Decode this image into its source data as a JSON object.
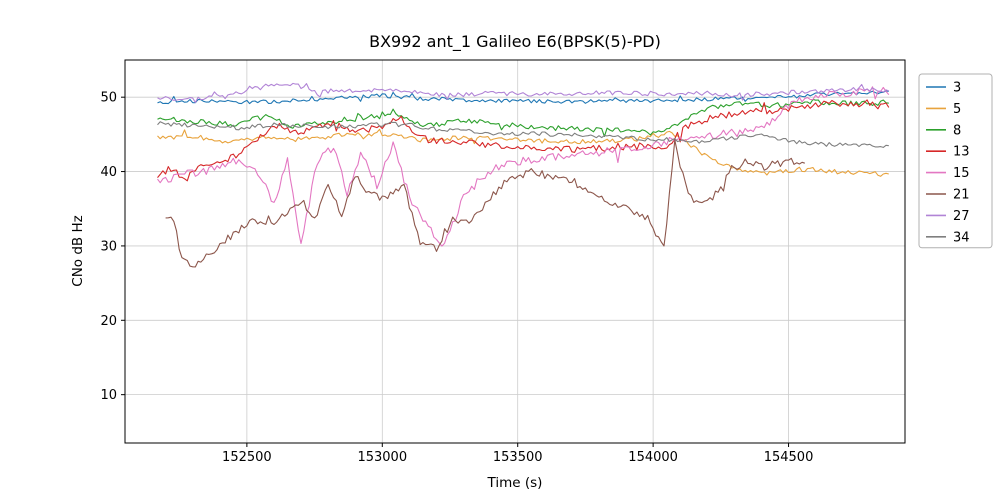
{
  "chart_data": {
    "type": "line",
    "title": "BX992 ant_1 Galileo E6(BPSK(5)-PD)",
    "xlabel": "Time (s)",
    "ylabel": "CNo dB Hz",
    "xlim": [
      152050,
      154930
    ],
    "ylim": [
      3.5,
      55
    ],
    "xticks": [
      152500,
      153000,
      153500,
      154000,
      154500
    ],
    "yticks": [
      10,
      20,
      30,
      40,
      50
    ],
    "grid": true,
    "grid_color": "#cccccc",
    "legend_position": "outside-right",
    "series": [
      {
        "name": "3",
        "color": "#1f77b4",
        "noise": 0.25,
        "x": [
          152170,
          152300,
          152450,
          152600,
          152750,
          152900,
          153000,
          153150,
          153300,
          153500,
          153700,
          153900,
          154100,
          154300,
          154500,
          154650,
          154870
        ],
        "y": [
          49.2,
          49.5,
          49.3,
          49.4,
          49.7,
          50.0,
          50.2,
          49.8,
          49.6,
          49.5,
          49.4,
          49.5,
          49.6,
          49.9,
          50.2,
          50.4,
          50.7
        ]
      },
      {
        "name": "5",
        "color": "#e8a33d",
        "noise": 0.3,
        "x": [
          152170,
          152300,
          152420,
          152550,
          152700,
          152850,
          153000,
          153150,
          153300,
          153450,
          153600,
          153800,
          153950,
          154050,
          154120,
          154200,
          154300,
          154420,
          154550,
          154700,
          154870
        ],
        "y": [
          44.5,
          44.8,
          43.9,
          44.6,
          44.3,
          44.9,
          45.1,
          44.2,
          44.6,
          44.4,
          44.1,
          44.0,
          44.4,
          45.3,
          44.0,
          42.0,
          40.3,
          39.8,
          40.3,
          39.9,
          39.6
        ]
      },
      {
        "name": "8",
        "color": "#2ca02c",
        "noise": 0.35,
        "x": [
          152170,
          152300,
          152450,
          152570,
          152650,
          152800,
          152950,
          153050,
          153150,
          153300,
          153450,
          153600,
          153750,
          153900,
          154000,
          154080,
          154180,
          154300,
          154450,
          154600,
          154750,
          154870
        ],
        "y": [
          47.2,
          46.7,
          46.4,
          47.4,
          46.1,
          46.6,
          47.3,
          47.6,
          46.2,
          46.9,
          46.3,
          45.9,
          45.7,
          45.6,
          45.2,
          46.0,
          48.3,
          49.2,
          48.9,
          49.4,
          49.1,
          49.3
        ]
      },
      {
        "name": "13",
        "color": "#d62728",
        "noise": 0.45,
        "x": [
          152170,
          152230,
          152270,
          152320,
          152400,
          152500,
          152600,
          152700,
          152800,
          152900,
          153000,
          153060,
          153150,
          153250,
          153400,
          153550,
          153700,
          153850,
          154000,
          154060,
          154120,
          154220,
          154350,
          154500,
          154650,
          154870
        ],
        "y": [
          39.5,
          40.6,
          38.6,
          40.9,
          41.1,
          43.0,
          46.3,
          45.0,
          46.7,
          45.4,
          46.0,
          47.4,
          44.4,
          44.0,
          43.6,
          43.1,
          43.0,
          43.2,
          43.4,
          43.6,
          46.0,
          47.4,
          48.0,
          48.4,
          49.2,
          48.8
        ]
      },
      {
        "name": "15",
        "color": "#e377c2",
        "noise": 0.55,
        "x": [
          152170,
          152260,
          152360,
          152460,
          152540,
          152600,
          152650,
          152700,
          152760,
          152820,
          152870,
          152920,
          152980,
          153040,
          153100,
          153160,
          153220,
          153300,
          153360,
          153430,
          153520,
          153650,
          153800,
          153950,
          154100,
          154250,
          154400,
          154520,
          154620,
          154720,
          154870
        ],
        "y": [
          38.5,
          39.6,
          40.1,
          41.4,
          40.0,
          35.6,
          42.0,
          30.2,
          41.4,
          43.4,
          37.2,
          42.4,
          38.2,
          43.8,
          36.6,
          33.2,
          29.6,
          36.4,
          39.0,
          40.6,
          41.4,
          42.0,
          42.5,
          43.4,
          44.4,
          45.0,
          45.6,
          49.4,
          50.3,
          50.6,
          50.8
        ]
      },
      {
        "name": "21",
        "color": "#8c564b",
        "noise": 0.5,
        "x": [
          152200,
          152230,
          152260,
          152300,
          152350,
          152430,
          152520,
          152600,
          152650,
          152700,
          152750,
          152800,
          152850,
          152900,
          152950,
          153000,
          153080,
          153140,
          153200,
          153260,
          153320,
          153380,
          153450,
          153520,
          153600,
          153700,
          153800,
          153900,
          153980,
          154040,
          154080,
          154120,
          154170,
          154220,
          154280,
          154340,
          154400,
          154480,
          154560
        ],
        "y": [
          33.3,
          33.6,
          28.0,
          27.1,
          28.6,
          31.0,
          33.4,
          33.0,
          34.6,
          36.0,
          33.6,
          38.4,
          34.0,
          39.4,
          37.0,
          36.4,
          38.0,
          30.6,
          29.6,
          33.4,
          33.0,
          36.0,
          38.4,
          39.6,
          39.9,
          38.4,
          36.4,
          35.0,
          33.8,
          29.6,
          43.8,
          38.0,
          35.6,
          36.4,
          39.9,
          41.4,
          40.6,
          41.2,
          41.6
        ]
      },
      {
        "name": "27",
        "color": "#b184d6",
        "noise": 0.3,
        "x": [
          152170,
          152300,
          152420,
          152520,
          152600,
          152680,
          152760,
          152850,
          152950,
          153050,
          153150,
          153250,
          153400,
          153550,
          153700,
          153850,
          154000,
          154150,
          154300,
          154450,
          154600,
          154720,
          154870
        ],
        "y": [
          49.8,
          49.9,
          50.1,
          51.3,
          51.8,
          51.6,
          50.6,
          51.0,
          50.8,
          51.1,
          50.5,
          50.3,
          50.5,
          50.4,
          50.5,
          50.6,
          50.5,
          50.4,
          50.3,
          50.5,
          50.8,
          51.0,
          51.0
        ]
      },
      {
        "name": "34",
        "color": "#7f7f7f",
        "noise": 0.3,
        "x": [
          152170,
          152320,
          152470,
          152620,
          152770,
          152920,
          153070,
          153220,
          153370,
          153520,
          153670,
          153820,
          153970,
          154100,
          154200,
          154300,
          154400,
          154500,
          154620,
          154720,
          154870
        ],
        "y": [
          46.5,
          46.2,
          45.9,
          46.3,
          46.0,
          46.2,
          46.4,
          45.6,
          45.3,
          45.1,
          45.0,
          44.8,
          44.4,
          44.2,
          44.0,
          44.6,
          45.0,
          44.1,
          43.7,
          43.5,
          43.5
        ]
      }
    ]
  }
}
